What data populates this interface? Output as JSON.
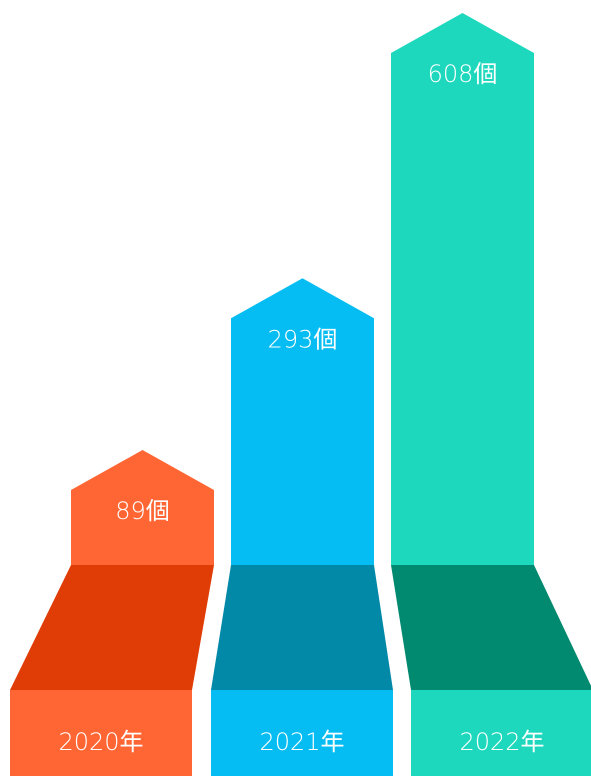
{
  "chart_data": {
    "type": "bar",
    "title": "",
    "xlabel": "",
    "ylabel": "",
    "categories": [
      "2020年",
      "2021年",
      "2022年"
    ],
    "values": [
      89,
      293,
      608
    ],
    "value_labels": [
      "89個",
      "293個",
      "608個"
    ],
    "grid": false,
    "legend": "none"
  },
  "colors": {
    "bars": [
      "#FF6633",
      "#05BDF2",
      "#1ED8BE"
    ],
    "ramps": [
      "#E03C05",
      "#0389A8",
      "#028A70"
    ],
    "bases": [
      "#FF6633",
      "#05BDF2",
      "#1ED8BE"
    ]
  }
}
